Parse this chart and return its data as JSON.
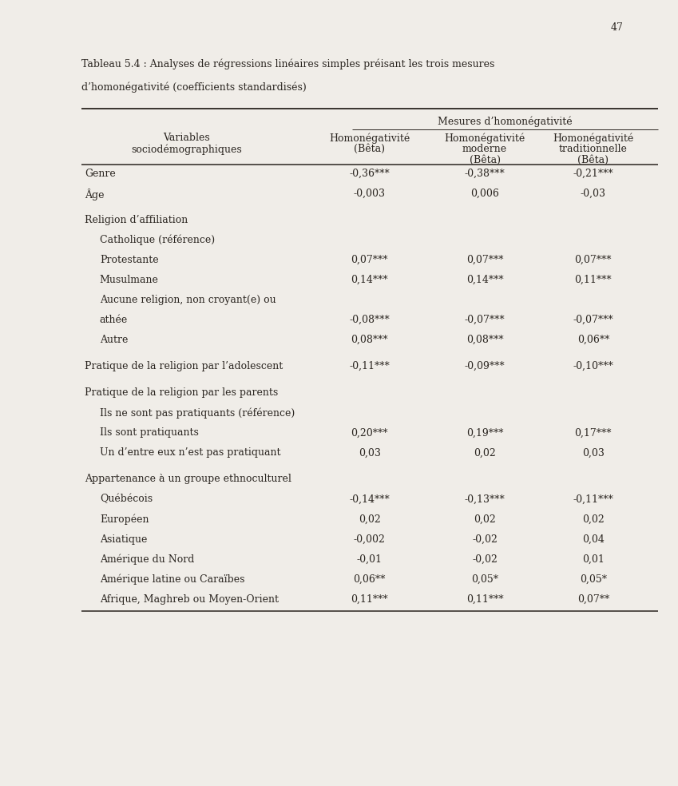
{
  "page_number": "47",
  "title_line1": "Tableau 5.4 : Analyses de régressions linéaires simples préisant les trois mesures",
  "title_line2": "d’homonégativité (coefficients standardisés)",
  "col_header_span": "Mesures d’homonégativité",
  "rows": [
    {
      "label": "Genre",
      "indent": 0,
      "group_before": true,
      "v1": "-0,36***",
      "v2": "-0,38***",
      "v3": "-0,21***"
    },
    {
      "label": "Âge",
      "indent": 0,
      "group_before": false,
      "v1": "-0,003",
      "v2": "0,006",
      "v3": "-0,03"
    },
    {
      "label": "Religion d’affiliation",
      "indent": 0,
      "group_before": true,
      "v1": "",
      "v2": "",
      "v3": ""
    },
    {
      "label": "Catholique (référence)",
      "indent": 1,
      "group_before": false,
      "v1": "",
      "v2": "",
      "v3": ""
    },
    {
      "label": "Protestante",
      "indent": 1,
      "group_before": false,
      "v1": "0,07***",
      "v2": "0,07***",
      "v3": "0,07***"
    },
    {
      "label": "Musulmane",
      "indent": 1,
      "group_before": false,
      "v1": "0,14***",
      "v2": "0,14***",
      "v3": "0,11***"
    },
    {
      "label": "Aucune religion, non croyant(e) ou",
      "indent": 1,
      "group_before": false,
      "v1": "",
      "v2": "",
      "v3": ""
    },
    {
      "label": "athée",
      "indent": 1,
      "group_before": false,
      "v1": "-0,08***",
      "v2": "-0,07***",
      "v3": "-0,07***"
    },
    {
      "label": "Autre",
      "indent": 1,
      "group_before": false,
      "v1": "0,08***",
      "v2": "0,08***",
      "v3": "0,06**"
    },
    {
      "label": "Pratique de la religion par l’adolescent",
      "indent": 0,
      "group_before": true,
      "v1": "-0,11***",
      "v2": "-0,09***",
      "v3": "-0,10***"
    },
    {
      "label": "Pratique de la religion par les parents",
      "indent": 0,
      "group_before": true,
      "v1": "",
      "v2": "",
      "v3": ""
    },
    {
      "label": "Ils ne sont pas pratiquants (référence)",
      "indent": 1,
      "group_before": false,
      "v1": "",
      "v2": "",
      "v3": ""
    },
    {
      "label": "Ils sont pratiquants",
      "indent": 1,
      "group_before": false,
      "v1": "0,20***",
      "v2": "0,19***",
      "v3": "0,17***"
    },
    {
      "label": "Un d’entre eux n’est pas pratiquant",
      "indent": 1,
      "group_before": false,
      "v1": "0,03",
      "v2": "0,02",
      "v3": "0,03"
    },
    {
      "label": "Appartenance à un groupe ethnoculturel",
      "indent": 0,
      "group_before": true,
      "v1": "",
      "v2": "",
      "v3": ""
    },
    {
      "label": "Québécois",
      "indent": 1,
      "group_before": false,
      "v1": "-0,14***",
      "v2": "-0,13***",
      "v3": "-0,11***"
    },
    {
      "label": "Européen",
      "indent": 1,
      "group_before": false,
      "v1": "0,02",
      "v2": "0,02",
      "v3": "0,02"
    },
    {
      "label": "Asiatique",
      "indent": 1,
      "group_before": false,
      "v1": "-0,002",
      "v2": "-0,02",
      "v3": "0,04"
    },
    {
      "label": "Amérique du Nord",
      "indent": 1,
      "group_before": false,
      "v1": "-0,01",
      "v2": "-0,02",
      "v3": "0,01"
    },
    {
      "label": "Amérique latine ou Caraïbes",
      "indent": 1,
      "group_before": false,
      "v1": "0,06**",
      "v2": "0,05*",
      "v3": "0,05*"
    },
    {
      "label": "Afrique, Maghreb ou Moyen-Orient",
      "indent": 1,
      "group_before": false,
      "v1": "0,11***",
      "v2": "0,11***",
      "v3": "0,07**"
    }
  ],
  "background_color": "#f0ede8",
  "text_color": "#2a2520",
  "font_size": 9.0,
  "font_family": "serif"
}
